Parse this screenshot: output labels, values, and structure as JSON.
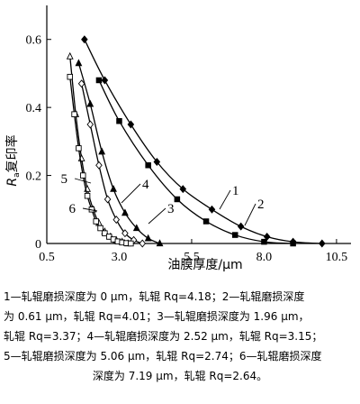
{
  "chart_data": {
    "type": "line",
    "xlabel": "油膜厚度/μm",
    "ylabel_main": "R",
    "ylabel_sub": "a",
    "ylabel_rest": "复印率",
    "xlim": [
      0.5,
      11.0
    ],
    "ylim": [
      0,
      0.7
    ],
    "x_ticks": [
      "0.5",
      "3.0",
      "5.5",
      "8.0",
      "10.5"
    ],
    "x_tick_values": [
      0.5,
      3.0,
      5.5,
      8.0,
      10.5
    ],
    "y_ticks": [
      "0",
      "0.2",
      "0.4",
      "0.6"
    ],
    "y_tick_values": [
      0,
      0.2,
      0.4,
      0.6
    ],
    "grid": false,
    "series": [
      {
        "name": "1",
        "marker": "diamond-filled",
        "x": [
          1.8,
          2.5,
          3.4,
          4.3,
          5.2,
          6.2,
          7.2,
          8.1,
          9.0,
          10.0
        ],
        "y": [
          0.6,
          0.48,
          0.35,
          0.24,
          0.16,
          0.1,
          0.05,
          0.02,
          0.005,
          0.0
        ]
      },
      {
        "name": "2",
        "marker": "square-filled",
        "x": [
          2.3,
          3.0,
          4.0,
          5.0,
          6.0,
          7.0,
          8.0,
          9.0
        ],
        "y": [
          0.48,
          0.36,
          0.23,
          0.13,
          0.065,
          0.025,
          0.005,
          0.0
        ]
      },
      {
        "name": "3",
        "marker": "triangle-filled",
        "x": [
          1.6,
          2.0,
          2.4,
          2.8,
          3.2,
          3.6,
          4.0,
          4.4
        ],
        "y": [
          0.53,
          0.41,
          0.27,
          0.16,
          0.09,
          0.045,
          0.015,
          0.0
        ]
      },
      {
        "name": "4",
        "marker": "diamond-open",
        "x": [
          1.7,
          2.0,
          2.3,
          2.6,
          2.9,
          3.2,
          3.5,
          3.8
        ],
        "y": [
          0.47,
          0.35,
          0.23,
          0.13,
          0.07,
          0.03,
          0.01,
          0.0
        ]
      },
      {
        "name": "5",
        "marker": "triangle-open",
        "x": [
          1.3,
          1.5,
          1.7,
          1.9,
          2.1,
          2.3,
          2.5,
          2.7,
          2.9,
          3.1,
          3.3
        ],
        "y": [
          0.55,
          0.38,
          0.25,
          0.16,
          0.1,
          0.06,
          0.035,
          0.02,
          0.01,
          0.005,
          0.0
        ]
      },
      {
        "name": "6",
        "marker": "square-open",
        "x": [
          1.3,
          1.45,
          1.6,
          1.75,
          1.9,
          2.05,
          2.2,
          2.35,
          2.5,
          2.65,
          2.8,
          2.95,
          3.1,
          3.25,
          3.4
        ],
        "y": [
          0.49,
          0.38,
          0.28,
          0.2,
          0.14,
          0.1,
          0.065,
          0.045,
          0.03,
          0.02,
          0.012,
          0.006,
          0.003,
          0.001,
          0.0
        ]
      }
    ]
  },
  "caption": {
    "line1": "1—轧辊磨损深度为 0 μm，轧辊 Rq=4.18；2—轧辊磨损深度",
    "line2": "为 0.61 μm，轧辊 Rq=4.01；3—轧辊磨损深度为 1.96 μm，",
    "line3": "轧辊 Rq=3.37；4—轧辊磨损深度为 2.52 μm，轧辊 Rq=3.15；",
    "line4": "5—轧辊磨损深度为 5.06 μm，轧辊 Rq=2.74；6—轧辊磨损深度",
    "line5": "深度为 7.19 μm，轧辊 Rq=2.64。"
  },
  "colors": {
    "ink": "#000000",
    "background": "#ffffff"
  }
}
